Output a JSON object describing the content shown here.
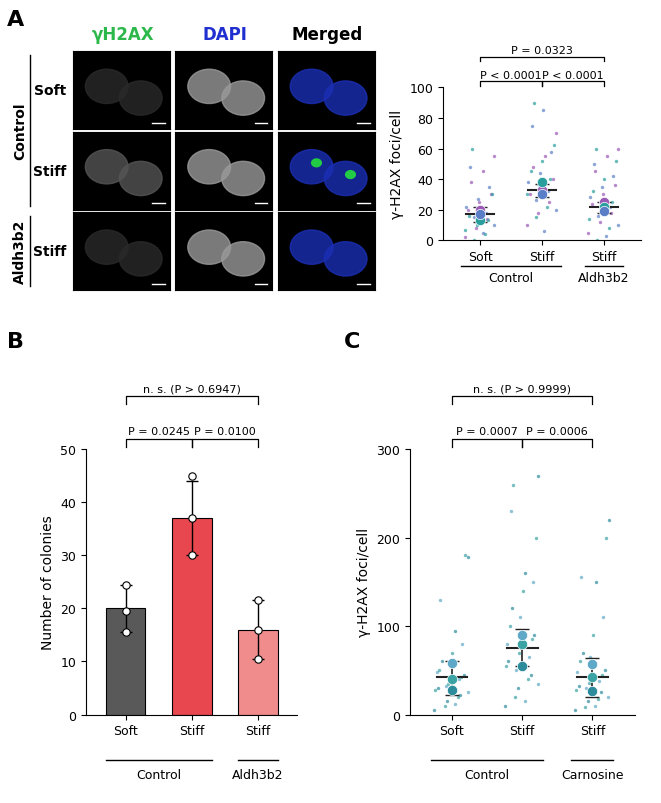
{
  "panel_labels": [
    "A",
    "B",
    "C"
  ],
  "image_grid": {
    "columns": [
      "γH2AX",
      "DAPI",
      "Merged"
    ],
    "rows": [
      "Soft",
      "Stiff",
      "Stiff"
    ],
    "row_groups": [
      {
        "label": "Control",
        "from": 0,
        "to": 1
      },
      {
        "label": "Aldh3b2",
        "from": 2,
        "to": 2
      }
    ]
  },
  "chart_data": [
    {
      "type": "scatter",
      "ylabel": "γ-H2AX foci/cell",
      "categories": [
        "Soft",
        "Stiff",
        "Stiff"
      ],
      "group_labels": [
        {
          "label": "Control",
          "from": 0,
          "to": 1
        },
        {
          "label": "Aldh3b2",
          "from": 2,
          "to": 2
        }
      ],
      "ylim": [
        0,
        100
      ],
      "yticks": [
        0,
        20,
        40,
        60,
        80,
        100
      ],
      "mean": [
        17,
        33,
        22
      ],
      "error_low": [
        12,
        28,
        18
      ],
      "error_high": [
        22,
        37,
        25
      ],
      "replicates": [
        {
          "color": "#9B59B6",
          "means": [
            20,
            33,
            25
          ],
          "points": [
            [
              2,
              8,
              14,
              20,
              25,
              30,
              38,
              45,
              55
            ],
            [
              10,
              18,
              25,
              30,
              35,
              40,
              48,
              55,
              70
            ],
            [
              5,
              12,
              18,
              24,
              30,
              36,
              45,
              55,
              60
            ]
          ]
        },
        {
          "color": "#2A9D9D",
          "means": [
            13,
            38,
            22
          ],
          "points": [
            [
              0,
              4,
              7,
              10,
              13,
              16,
              22,
              30,
              60
            ],
            [
              15,
              22,
              30,
              36,
              40,
              45,
              52,
              62,
              90
            ],
            [
              0,
              8,
              14,
              20,
              25,
              32,
              40,
              52,
              60
            ]
          ]
        },
        {
          "color": "#5B7FC7",
          "means": [
            17,
            30,
            19
          ],
          "points": [
            [
              5,
              10,
              15,
              18,
              22,
              27,
              35,
              48
            ],
            [
              6,
              20,
              26,
              32,
              38,
              44,
              58,
              75,
              85
            ],
            [
              3,
              10,
              16,
              22,
              28,
              35,
              42,
              50
            ]
          ]
        }
      ],
      "comparisons": [
        {
          "from": 0,
          "to": 1,
          "label": "P < 0.0001"
        },
        {
          "from": 1,
          "to": 2,
          "label": "P < 0.0001"
        },
        {
          "from": 0,
          "to": 2,
          "label": "P = 0.0323"
        }
      ]
    },
    {
      "type": "bar",
      "ylabel": "Number of colonies",
      "categories": [
        "Soft",
        "Stiff",
        "Stiff"
      ],
      "group_labels": [
        {
          "label": "Control",
          "from": 0,
          "to": 1
        },
        {
          "label": "Aldh3b2",
          "from": 2,
          "to": 2
        }
      ],
      "ylim": [
        0,
        50
      ],
      "yticks": [
        0,
        10,
        20,
        30,
        40,
        50
      ],
      "values": [
        20,
        37,
        16
      ],
      "error": [
        4.5,
        7,
        5.5
      ],
      "colors": [
        "#595959",
        "#E8474F",
        "#F08C8C"
      ],
      "points": [
        [
          24.5,
          19.5,
          15.5
        ],
        [
          45,
          37,
          30
        ],
        [
          21.5,
          16,
          10.5
        ]
      ],
      "comparisons": [
        {
          "from": 0,
          "to": 1,
          "label": "P = 0.0245"
        },
        {
          "from": 1,
          "to": 2,
          "label": "P = 0.0100"
        },
        {
          "from": 0,
          "to": 2,
          "label": "n. s. (P > 0.6947)"
        }
      ]
    },
    {
      "type": "scatter",
      "ylabel": "γ-H2AX foci/cell",
      "categories": [
        "Soft",
        "Stiff",
        "Stiff"
      ],
      "group_labels": [
        {
          "label": "Control",
          "from": 0,
          "to": 1
        },
        {
          "label": "Carnosine",
          "from": 2,
          "to": 2
        }
      ],
      "ylim": [
        0,
        300
      ],
      "yticks": [
        0,
        100,
        200,
        300
      ],
      "mean": [
        42,
        75,
        43
      ],
      "error_low": [
        22,
        55,
        20
      ],
      "error_high": [
        60,
        97,
        64
      ],
      "replicates": [
        {
          "color": "#2C8C9C",
          "means": [
            28,
            55,
            27
          ],
          "points": [
            [
              5,
              15,
              22,
              30,
              38,
              45,
              60,
              95,
              178
            ],
            [
              10,
              30,
              45,
              60,
              75,
              90,
              120,
              160,
              270
            ],
            [
              5,
              15,
              25,
              32,
              40,
              50,
              70,
              150,
              220
            ]
          ]
        },
        {
          "color": "#3BA3A3",
          "means": [
            40,
            80,
            43
          ],
          "points": [
            [
              10,
              20,
              28,
              35,
              42,
              50,
              70,
              180
            ],
            [
              20,
              40,
              55,
              70,
              85,
              100,
              140,
              200,
              260
            ],
            [
              8,
              18,
              28,
              36,
              45,
              60,
              90,
              200
            ]
          ]
        },
        {
          "color": "#5FA8C8",
          "means": [
            58,
            90,
            57
          ],
          "points": [
            [
              12,
              25,
              32,
              40,
              48,
              55,
              80,
              130
            ],
            [
              15,
              35,
              50,
              65,
              80,
              110,
              150,
              230
            ],
            [
              10,
              20,
              30,
              38,
              48,
              65,
              110,
              155
            ]
          ]
        }
      ],
      "comparisons": [
        {
          "from": 0,
          "to": 1,
          "label": "P = 0.0007"
        },
        {
          "from": 1,
          "to": 2,
          "label": "P = 0.0006"
        },
        {
          "from": 0,
          "to": 2,
          "label": "n. s. (P > 0.9999)"
        }
      ]
    }
  ]
}
